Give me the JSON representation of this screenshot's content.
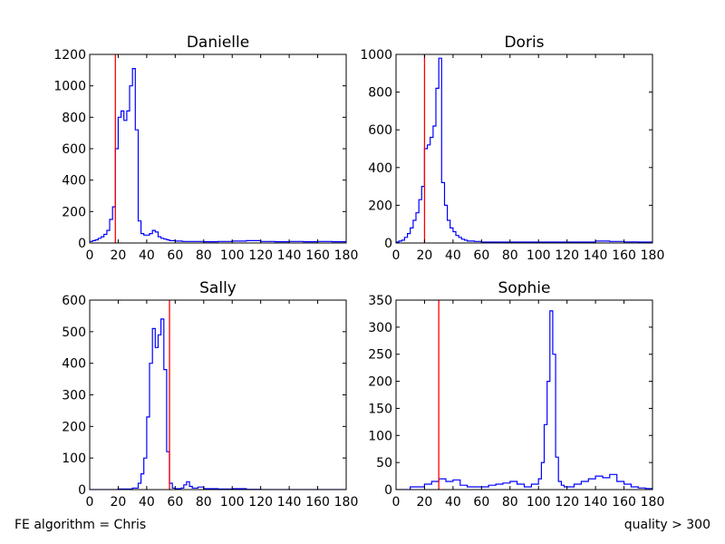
{
  "footer": {
    "left": "FE algorithm = Chris",
    "right": "quality > 300"
  },
  "chart_data": [
    {
      "type": "line",
      "style": "step histogram",
      "title": "Danielle",
      "xlim": [
        0,
        180
      ],
      "ylim": [
        0,
        1200
      ],
      "xticks": [
        0,
        20,
        40,
        60,
        80,
        100,
        120,
        140,
        160,
        180
      ],
      "yticks": [
        0,
        200,
        400,
        600,
        800,
        1000,
        1200
      ],
      "line_color": "#0000ff",
      "vline": {
        "x": 18,
        "color": "#ff0000"
      },
      "series": [
        {
          "x": [
            0,
            2,
            4,
            6,
            8,
            10,
            12,
            14,
            16,
            18,
            20,
            22,
            24,
            26,
            28,
            30,
            32,
            34,
            36,
            38,
            40,
            42,
            44,
            46,
            48,
            50,
            52,
            54,
            56,
            58,
            60,
            65,
            70,
            80,
            90,
            100,
            110,
            120,
            130,
            140,
            150,
            160,
            170,
            180
          ],
          "y": [
            10,
            15,
            20,
            30,
            40,
            55,
            80,
            150,
            230,
            600,
            800,
            840,
            780,
            840,
            1000,
            1110,
            720,
            140,
            60,
            50,
            50,
            60,
            80,
            70,
            40,
            30,
            25,
            20,
            15,
            15,
            12,
            10,
            10,
            8,
            10,
            12,
            15,
            10,
            8,
            10,
            8,
            10,
            8,
            5
          ]
        }
      ]
    },
    {
      "type": "line",
      "style": "step histogram",
      "title": "Doris",
      "xlim": [
        0,
        180
      ],
      "ylim": [
        0,
        1000
      ],
      "xticks": [
        0,
        20,
        40,
        60,
        80,
        100,
        120,
        140,
        160,
        180
      ],
      "yticks": [
        0,
        200,
        400,
        600,
        800,
        1000
      ],
      "line_color": "#0000ff",
      "vline": {
        "x": 20,
        "color": "#ff0000"
      },
      "series": [
        {
          "x": [
            0,
            2,
            4,
            6,
            8,
            10,
            12,
            14,
            16,
            18,
            20,
            22,
            24,
            26,
            28,
            30,
            32,
            34,
            36,
            38,
            40,
            42,
            44,
            46,
            48,
            50,
            55,
            60,
            70,
            80,
            90,
            100,
            110,
            120,
            130,
            140,
            150,
            160,
            170,
            180
          ],
          "y": [
            5,
            10,
            15,
            30,
            50,
            80,
            120,
            160,
            230,
            300,
            500,
            520,
            560,
            620,
            820,
            980,
            320,
            200,
            120,
            80,
            60,
            40,
            30,
            20,
            15,
            10,
            8,
            5,
            5,
            5,
            5,
            5,
            5,
            5,
            5,
            10,
            8,
            6,
            5,
            5
          ]
        }
      ]
    },
    {
      "type": "line",
      "style": "step histogram",
      "title": "Sally",
      "xlim": [
        0,
        180
      ],
      "ylim": [
        0,
        600
      ],
      "xticks": [
        0,
        20,
        40,
        60,
        80,
        100,
        120,
        140,
        160,
        180
      ],
      "yticks": [
        0,
        100,
        200,
        300,
        400,
        500,
        600
      ],
      "line_color": "#0000ff",
      "vline": {
        "x": 56,
        "color": "#ff0000"
      },
      "series": [
        {
          "x": [
            0,
            20,
            30,
            34,
            36,
            38,
            40,
            42,
            44,
            46,
            48,
            50,
            52,
            54,
            56,
            58,
            60,
            64,
            66,
            68,
            70,
            72,
            74,
            76,
            80,
            90,
            100,
            110,
            120,
            180
          ],
          "y": [
            0,
            2,
            5,
            20,
            50,
            100,
            230,
            400,
            510,
            450,
            490,
            540,
            380,
            120,
            20,
            5,
            3,
            5,
            15,
            25,
            10,
            5,
            5,
            8,
            3,
            2,
            3,
            1,
            0,
            0
          ]
        }
      ]
    },
    {
      "type": "line",
      "style": "step histogram",
      "title": "Sophie",
      "xlim": [
        0,
        180
      ],
      "ylim": [
        0,
        350
      ],
      "xticks": [
        0,
        20,
        40,
        60,
        80,
        100,
        120,
        140,
        160,
        180
      ],
      "yticks": [
        0,
        50,
        100,
        150,
        200,
        250,
        300,
        350
      ],
      "line_color": "#0000ff",
      "vline": {
        "x": 30,
        "color": "#ff0000"
      },
      "series": [
        {
          "x": [
            0,
            10,
            20,
            25,
            30,
            35,
            40,
            45,
            50,
            55,
            60,
            65,
            70,
            75,
            80,
            85,
            90,
            95,
            100,
            102,
            104,
            106,
            108,
            110,
            112,
            114,
            116,
            118,
            120,
            125,
            130,
            135,
            140,
            145,
            150,
            155,
            160,
            165,
            170,
            175,
            180
          ],
          "y": [
            0,
            5,
            10,
            15,
            20,
            15,
            18,
            8,
            5,
            5,
            5,
            8,
            10,
            12,
            15,
            10,
            5,
            10,
            20,
            50,
            120,
            200,
            330,
            250,
            60,
            15,
            8,
            5,
            5,
            10,
            15,
            20,
            25,
            22,
            28,
            15,
            10,
            5,
            3,
            2,
            0
          ]
        }
      ]
    }
  ]
}
